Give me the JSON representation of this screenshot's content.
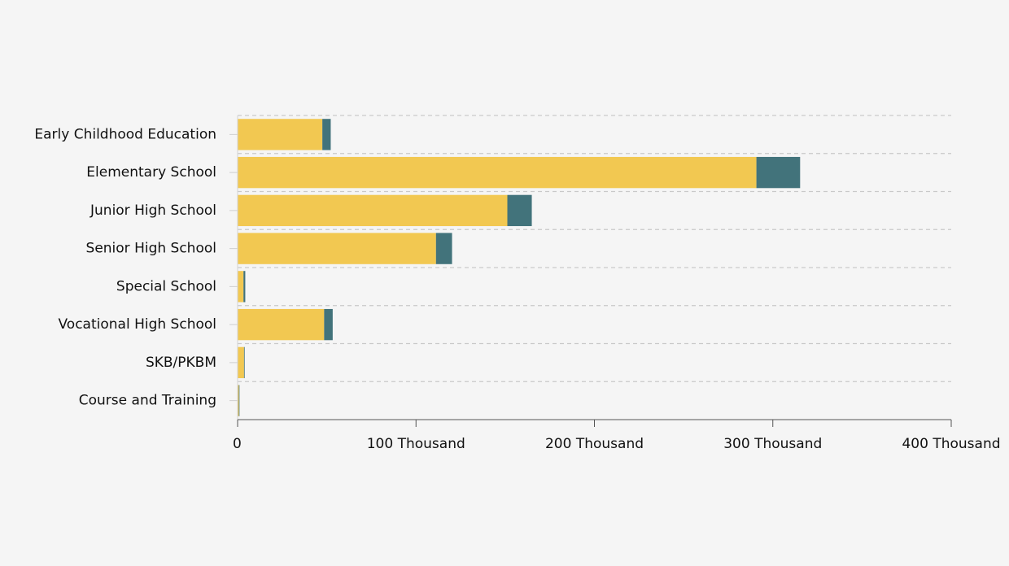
{
  "chart_data": {
    "type": "bar",
    "orientation": "horizontal",
    "stacked": true,
    "categories": [
      "Early Childhood Education",
      "Elementary School",
      "Junior High School",
      "Senior High School",
      "Special School",
      "Vocational High School",
      "SKB/PKBM",
      "Course and Training"
    ],
    "series": [
      {
        "color": "#f2c851",
        "values": [
          47500,
          290800,
          151200,
          111200,
          3300,
          48500,
          3600,
          700
        ]
      },
      {
        "color": "#42737b",
        "values": [
          4700,
          24500,
          13700,
          9000,
          1000,
          4800,
          200,
          100
        ]
      }
    ],
    "xlim": [
      0,
      400000
    ],
    "x_ticks": [
      {
        "value": 0,
        "label": "0"
      },
      {
        "value": 100000,
        "label": "100 Thousand"
      },
      {
        "value": 200000,
        "label": "200 Thousand"
      },
      {
        "value": 300000,
        "label": "300 Thousand"
      },
      {
        "value": 400000,
        "label": "400 Thousand"
      }
    ],
    "grid": true,
    "legend": "none"
  }
}
